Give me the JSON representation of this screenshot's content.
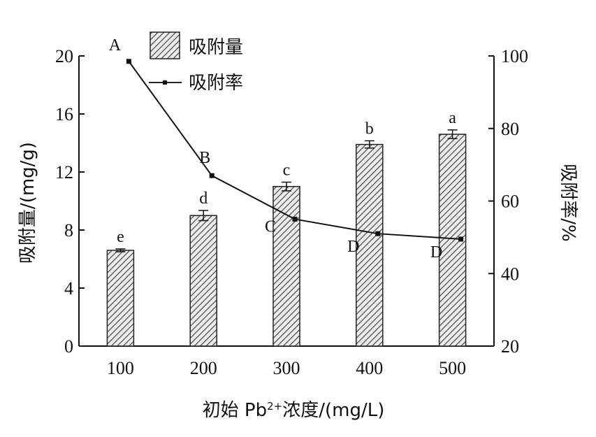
{
  "chart_data": {
    "type": "bar+line",
    "categories": [
      "100",
      "200",
      "300",
      "400",
      "500"
    ],
    "xlabel": "初始 Pb²⁺浓度/(mg/L)",
    "xlabel_parts": {
      "pre": "初始 Pb",
      "sup": "2+",
      "post": "浓度/(mg/L)"
    },
    "ylabel_left": "吸附量/(mg/g)",
    "ylabel_right": "吸附率/%",
    "ylim_left": [
      0,
      20
    ],
    "yticks_left": [
      "0",
      "4",
      "8",
      "12",
      "16",
      "20"
    ],
    "ylim_right": [
      20,
      100
    ],
    "yticks_right": [
      "20",
      "40",
      "60",
      "80",
      "100"
    ],
    "bars": {
      "name": "吸附量",
      "values": [
        6.6,
        9.0,
        11.0,
        13.9,
        14.6
      ],
      "errors": [
        0.1,
        0.35,
        0.3,
        0.25,
        0.3
      ],
      "letters": [
        "e",
        "d",
        "c",
        "b",
        "a"
      ]
    },
    "line": {
      "name": "吸附率",
      "values": [
        98.5,
        67.0,
        55.0,
        51.0,
        49.5
      ],
      "letters": [
        "A",
        "B",
        "C",
        "D",
        "D"
      ]
    },
    "legend_position": "top-left",
    "grid": false
  }
}
